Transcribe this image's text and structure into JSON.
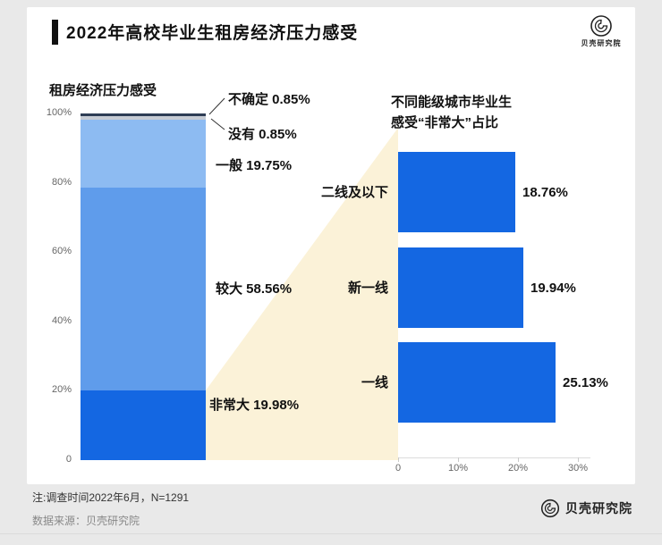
{
  "header": {
    "title": "2022年高校毕业生租房经济压力感受",
    "brand": "贝壳研究院"
  },
  "footer": {
    "note1": "注:调查时间2022年6月，N=1291",
    "note2": "数据来源：贝壳研究院",
    "brand": "贝壳研究院"
  },
  "chart_data": [
    {
      "type": "bar",
      "subtype": "stacked_column",
      "title": "租房经济压力感受",
      "categories": [
        "非常大",
        "较大",
        "一般",
        "没有",
        "不确定"
      ],
      "values": [
        19.98,
        58.56,
        19.75,
        0.85,
        0.85
      ],
      "segment_colors": [
        "#1467e2",
        "#5f9ceb",
        "#8dbbf2",
        "#c6cbd4",
        "#2e3d55"
      ],
      "callout_labels": [
        "非常大 19.98%",
        "较大 58.56%",
        "一般 19.75%",
        "没有 0.85%",
        "不确定 0.85%"
      ],
      "ylim": [
        0,
        100
      ],
      "yticks": [
        "100%",
        "80%",
        "60%",
        "40%",
        "20%",
        "0"
      ],
      "grid": false,
      "legend": "none"
    },
    {
      "type": "bar",
      "subtype": "horizontal",
      "title": "不同能级城市毕业生\n感受“非常大”占比",
      "categories": [
        "二线及以下",
        "新一线",
        "一线"
      ],
      "values": [
        18.76,
        19.94,
        25.13
      ],
      "value_labels": [
        "18.76%",
        "19.94%",
        "25.13%"
      ],
      "xlim": [
        0,
        30
      ],
      "xticks": [
        "0",
        "10%",
        "20%",
        "30%"
      ],
      "bar_color": "#1467e2",
      "grid": false,
      "legend": "none"
    }
  ]
}
